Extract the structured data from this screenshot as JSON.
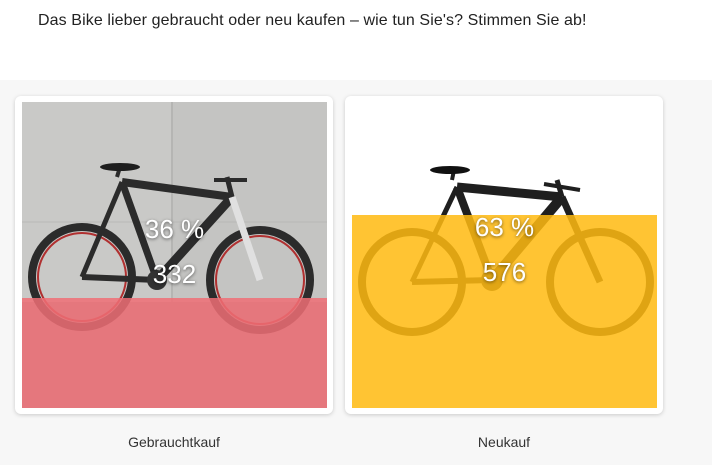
{
  "question": "Das Bike lieber gebraucht oder neu kaufen – wie tun Sie's? Stimmen Sie ab!",
  "options": [
    {
      "label": "Gebrauchtkauf",
      "percent_text": "36 %",
      "votes_text": "332",
      "percent": 36,
      "votes": 332,
      "overlay_color": "#f06e76",
      "image": "used-mountain-bike-photo"
    },
    {
      "label": "Neukauf",
      "percent_text": "63 %",
      "votes_text": "576",
      "percent": 63,
      "votes": 576,
      "overlay_color": "#ffba12",
      "image": "new-mountain-bike-photo"
    }
  ]
}
